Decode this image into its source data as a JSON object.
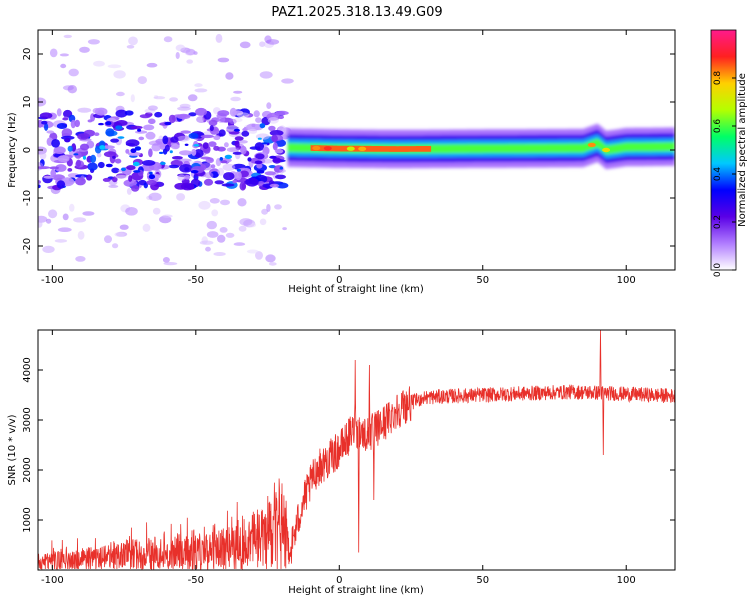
{
  "title": "PAZ1.2025.318.13.49.G09",
  "colors": {
    "snr_line": "#e8302a",
    "frame": "#000000"
  },
  "chart_data": [
    {
      "type": "heatmap",
      "name": "spectrogram",
      "xlabel": "Height of straight line (km)",
      "ylabel": "Frequency (Hz)",
      "xlim": [
        -105,
        117
      ],
      "ylim": [
        -25,
        25
      ],
      "x_ticks": [
        -100,
        -50,
        0,
        50,
        100
      ],
      "y_ticks": [
        -20,
        -10,
        0,
        10,
        20
      ],
      "colorbar": {
        "label": "Normalized spectral amplitude",
        "range": [
          0,
          1
        ],
        "ticks": [
          0.0,
          0.2,
          0.4,
          0.6,
          0.8
        ],
        "tick_labels": [
          "0.0",
          "0.2",
          "0.4",
          "0.6",
          "0.8"
        ],
        "colormap": [
          "#ffffff",
          "#b07cff",
          "#5a00e6",
          "#0000ff",
          "#00c8ff",
          "#00ff66",
          "#b4ff00",
          "#ffd000",
          "#ff2020",
          "#ff1a8c"
        ]
      },
      "features": {
        "noise_region_x": [
          -105,
          -18
        ],
        "noise_band_y": [
          -8,
          8
        ],
        "ridge": [
          [
            -18,
            0.5
          ],
          [
            0,
            0.3
          ],
          [
            20,
            0.2
          ],
          [
            50,
            0.3
          ],
          [
            85,
            0.4
          ],
          [
            90,
            1.5
          ],
          [
            93,
            0.0
          ],
          [
            100,
            0.6
          ],
          [
            117,
            0.7
          ]
        ],
        "ridge_peak_x": [
          -10,
          32
        ]
      }
    },
    {
      "type": "line",
      "name": "snr",
      "xlabel": "Height of straight line (km)",
      "ylabel": "SNR (10 * v/v)",
      "xlim": [
        -105,
        117
      ],
      "ylim": [
        0,
        4800
      ],
      "x_ticks": [
        -100,
        -50,
        0,
        50,
        100
      ],
      "y_ticks": [
        1000,
        2000,
        3000,
        4000
      ],
      "envelope": [
        [
          -105,
          180
        ],
        [
          -90,
          220
        ],
        [
          -70,
          300
        ],
        [
          -50,
          380
        ],
        [
          -35,
          480
        ],
        [
          -25,
          700
        ],
        [
          -20,
          900
        ],
        [
          -17,
          400
        ],
        [
          -13,
          1300
        ],
        [
          -8,
          2000
        ],
        [
          0,
          2400
        ],
        [
          5,
          2800
        ],
        [
          10,
          2700
        ],
        [
          15,
          2900
        ],
        [
          20,
          3200
        ],
        [
          25,
          3350
        ],
        [
          30,
          3450
        ],
        [
          40,
          3480
        ],
        [
          60,
          3520
        ],
        [
          80,
          3560
        ],
        [
          88,
          3550
        ],
        [
          100,
          3520
        ],
        [
          117,
          3480
        ]
      ],
      "spikes": [
        {
          "x": 5.5,
          "y": 4200
        },
        {
          "x": 6.8,
          "y": 350
        },
        {
          "x": 10.5,
          "y": 4100
        },
        {
          "x": 12.0,
          "y": 1400
        },
        {
          "x": 91.0,
          "y": 4800
        },
        {
          "x": 92.0,
          "y": 2300
        }
      ]
    }
  ]
}
